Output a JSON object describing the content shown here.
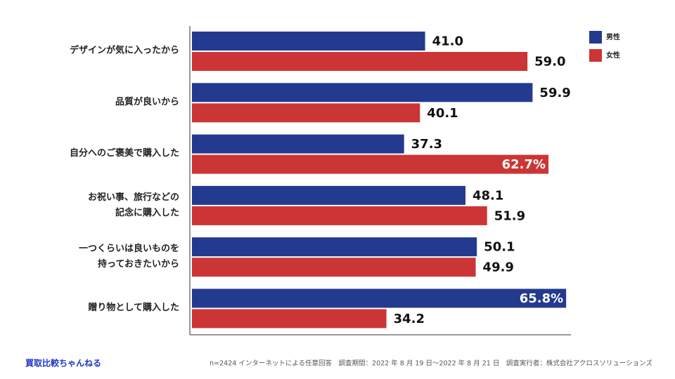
{
  "chart_data": {
    "type": "hbar",
    "categories": [
      "デザインが気に入ったから",
      "品質が良いから",
      "自分へのご褒美で購入した",
      "お祝い事、旅行などの\n記念に購入した",
      "一つくらいは良いものを\n持っておきたいから",
      "贈り物として購入した"
    ],
    "series": [
      {
        "name": "男性",
        "color": "#233a8f",
        "values": [
          41.0,
          59.9,
          37.3,
          48.1,
          50.1,
          65.8
        ],
        "value_labels": [
          "41.0",
          "59.9",
          "37.3",
          "48.1",
          "50.1",
          "65.8%"
        ]
      },
      {
        "name": "女性",
        "color": "#cc3535",
        "values": [
          59.0,
          40.1,
          62.7,
          51.9,
          49.9,
          34.2
        ],
        "value_labels": [
          "59.0",
          "40.1",
          "62.7%",
          "51.9",
          "49.9",
          "34.2"
        ]
      }
    ],
    "xlim": [
      0,
      66.4
    ],
    "legend": "top-right",
    "source": "買取比較ちゃんねる",
    "note": "n=2424 インターネットによる任意回答　調査期間：2022 年 8 月 19 日～2022 年 8 月 21 日　調査実行者：株式会社アクロスソリューションズ"
  }
}
